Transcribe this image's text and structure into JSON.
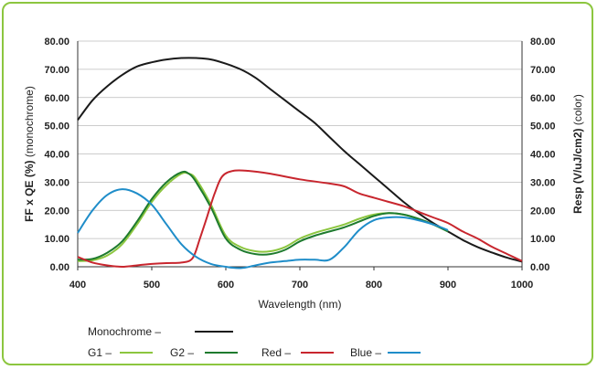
{
  "chart_data": {
    "type": "line",
    "x_axis": {
      "label": "Wavelength (nm)",
      "range": [
        400,
        1000
      ],
      "ticks": [
        "400",
        "500",
        "600",
        "700",
        "800",
        "900",
        "1000"
      ]
    },
    "y_left": {
      "label_bold": "FF x QE (%)",
      "label_normal": " (monochrome)",
      "range": [
        0,
        80
      ],
      "ticks": [
        "0.00",
        "10.00",
        "20.00",
        "30.00",
        "40.00",
        "50.00",
        "60.00",
        "70.00",
        "80.00"
      ]
    },
    "y_right": {
      "label_bold": "Resp (V/uJ/cm2)",
      "label_normal": " (color)",
      "range": [
        0,
        80
      ],
      "ticks": [
        "0.00",
        "10.00",
        "20.00",
        "30.00",
        "40.00",
        "50.00",
        "60.00",
        "70.00",
        "80.00"
      ]
    },
    "grid": "horizontal",
    "series": [
      {
        "name": "Monochrome",
        "color": "#1a1a1a",
        "points": [
          [
            400,
            52
          ],
          [
            420,
            59
          ],
          [
            440,
            64
          ],
          [
            460,
            68
          ],
          [
            480,
            71
          ],
          [
            500,
            72.5
          ],
          [
            520,
            73.5
          ],
          [
            540,
            74
          ],
          [
            560,
            74
          ],
          [
            580,
            73.5
          ],
          [
            600,
            72
          ],
          [
            620,
            70
          ],
          [
            640,
            67
          ],
          [
            660,
            63
          ],
          [
            680,
            59
          ],
          [
            700,
            55
          ],
          [
            720,
            51
          ],
          [
            740,
            46
          ],
          [
            760,
            41
          ],
          [
            780,
            36.5
          ],
          [
            800,
            32
          ],
          [
            820,
            27.5
          ],
          [
            840,
            23
          ],
          [
            860,
            19
          ],
          [
            880,
            15.5
          ],
          [
            900,
            12.5
          ],
          [
            920,
            9.5
          ],
          [
            940,
            7
          ],
          [
            960,
            5
          ],
          [
            980,
            3.2
          ],
          [
            1000,
            1.8
          ]
        ]
      },
      {
        "name": "G1",
        "color": "#8cc63f",
        "points": [
          [
            400,
            2
          ],
          [
            420,
            2.3
          ],
          [
            440,
            4
          ],
          [
            460,
            8
          ],
          [
            480,
            15
          ],
          [
            500,
            23
          ],
          [
            520,
            29
          ],
          [
            540,
            33
          ],
          [
            550,
            33
          ],
          [
            560,
            31
          ],
          [
            580,
            22
          ],
          [
            600,
            11
          ],
          [
            620,
            7
          ],
          [
            640,
            5.5
          ],
          [
            660,
            5.5
          ],
          [
            680,
            7
          ],
          [
            700,
            10
          ],
          [
            720,
            12
          ],
          [
            740,
            13.5
          ],
          [
            760,
            15
          ],
          [
            780,
            17
          ],
          [
            800,
            18.5
          ],
          [
            820,
            19
          ],
          [
            840,
            18.5
          ],
          [
            860,
            17
          ],
          [
            880,
            15
          ],
          [
            900,
            12.5
          ]
        ]
      },
      {
        "name": "G2",
        "color": "#1e7b2e",
        "points": [
          [
            400,
            2.5
          ],
          [
            420,
            2.8
          ],
          [
            440,
            5
          ],
          [
            460,
            9
          ],
          [
            480,
            16
          ],
          [
            500,
            24
          ],
          [
            520,
            30
          ],
          [
            540,
            33.5
          ],
          [
            550,
            33
          ],
          [
            560,
            30
          ],
          [
            580,
            21
          ],
          [
            600,
            10
          ],
          [
            620,
            6
          ],
          [
            640,
            4.5
          ],
          [
            660,
            4.5
          ],
          [
            680,
            6
          ],
          [
            700,
            9
          ],
          [
            720,
            11
          ],
          [
            740,
            12.5
          ],
          [
            760,
            14
          ],
          [
            780,
            16
          ],
          [
            800,
            18
          ],
          [
            820,
            19
          ],
          [
            840,
            18.5
          ],
          [
            860,
            17
          ],
          [
            880,
            15
          ],
          [
            900,
            12.5
          ]
        ]
      },
      {
        "name": "Red",
        "color": "#c8262e",
        "points": [
          [
            400,
            3.5
          ],
          [
            420,
            1.5
          ],
          [
            440,
            0.5
          ],
          [
            460,
            0
          ],
          [
            480,
            0.5
          ],
          [
            500,
            1
          ],
          [
            520,
            1.3
          ],
          [
            540,
            1.5
          ],
          [
            555,
            3
          ],
          [
            565,
            10
          ],
          [
            575,
            18
          ],
          [
            585,
            26
          ],
          [
            595,
            32
          ],
          [
            610,
            34
          ],
          [
            630,
            34
          ],
          [
            660,
            33
          ],
          [
            700,
            31
          ],
          [
            740,
            29.5
          ],
          [
            760,
            28.5
          ],
          [
            780,
            26
          ],
          [
            800,
            24.5
          ],
          [
            820,
            23
          ],
          [
            840,
            21.5
          ],
          [
            860,
            19.5
          ],
          [
            880,
            17.5
          ],
          [
            900,
            15.5
          ],
          [
            920,
            12.5
          ],
          [
            940,
            10
          ],
          [
            960,
            7
          ],
          [
            980,
            4.5
          ],
          [
            1000,
            2
          ]
        ]
      },
      {
        "name": "Blue",
        "color": "#1f8dc9",
        "points": [
          [
            400,
            12
          ],
          [
            420,
            20
          ],
          [
            440,
            25.5
          ],
          [
            460,
            27.5
          ],
          [
            480,
            26
          ],
          [
            500,
            22
          ],
          [
            520,
            15
          ],
          [
            540,
            8
          ],
          [
            560,
            3.5
          ],
          [
            580,
            1
          ],
          [
            600,
            0
          ],
          [
            620,
            -0.5
          ],
          [
            640,
            0.5
          ],
          [
            660,
            1.5
          ],
          [
            680,
            2
          ],
          [
            700,
            2.5
          ],
          [
            720,
            2.5
          ],
          [
            740,
            2.5
          ],
          [
            760,
            7
          ],
          [
            780,
            13
          ],
          [
            800,
            16.5
          ],
          [
            820,
            17.5
          ],
          [
            840,
            17.5
          ],
          [
            860,
            16.5
          ],
          [
            880,
            15
          ],
          [
            900,
            13
          ]
        ]
      }
    ],
    "legend": {
      "position": "bottom",
      "entries": [
        {
          "label": "Monochrome –",
          "color": "#1a1a1a"
        },
        {
          "label": "G1 –",
          "color": "#8cc63f"
        },
        {
          "label": "G2 –",
          "color": "#1e7b2e"
        },
        {
          "label": "Red –",
          "color": "#c8262e"
        },
        {
          "label": "Blue –",
          "color": "#1f8dc9"
        }
      ]
    },
    "frame_color": "#8cc63f",
    "grid_color": "#bbbbbb"
  }
}
